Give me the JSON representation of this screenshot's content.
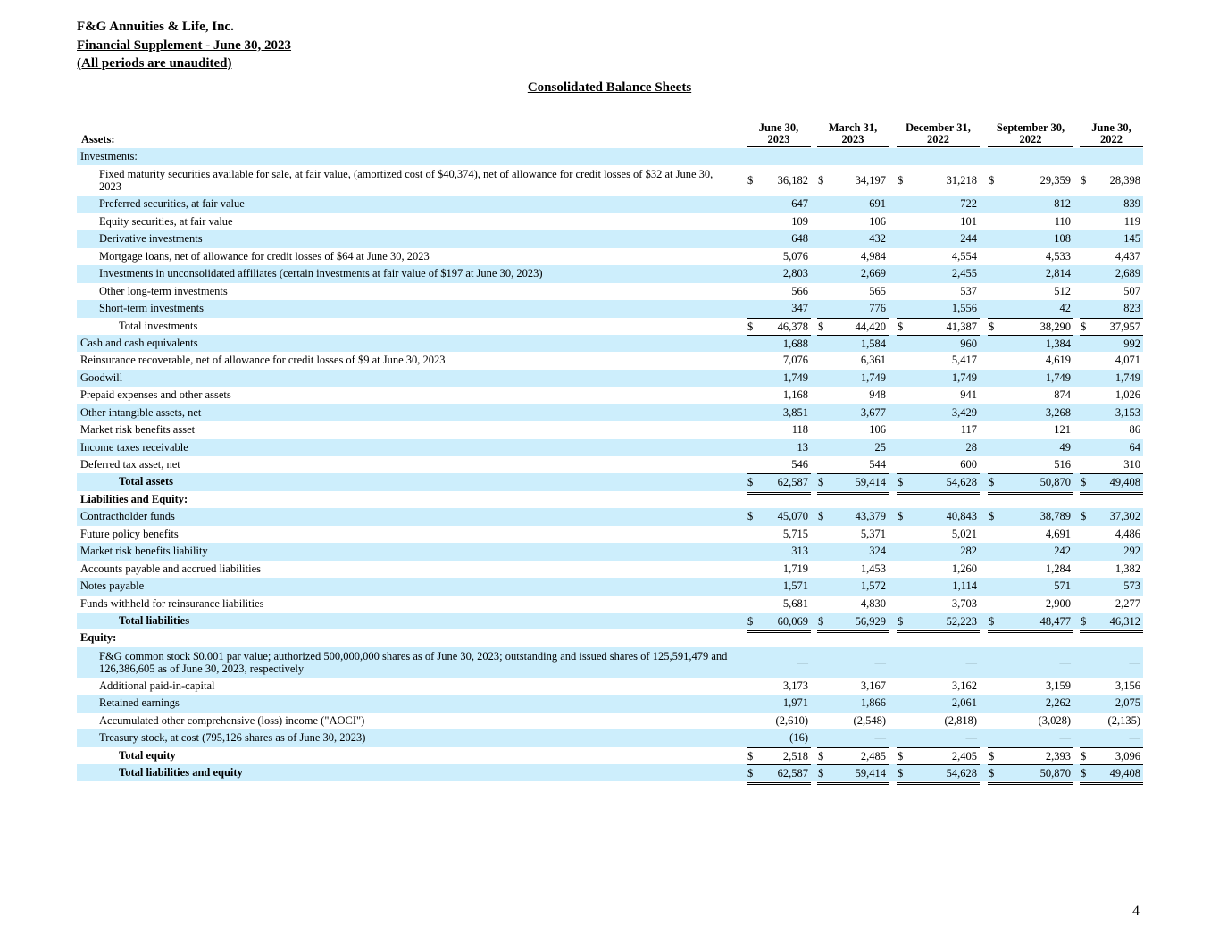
{
  "header": {
    "company": "F&G Annuities & Life, Inc.",
    "supplement": "Financial Supplement - June 30, 2023",
    "note": "(All periods are unaudited)"
  },
  "title": "Consolidated Balance Sheets",
  "columns": [
    {
      "line1": "June 30,",
      "line2": "2023"
    },
    {
      "line1": "March 31,",
      "line2": "2023"
    },
    {
      "line1": "December 31,",
      "line2": "2022"
    },
    {
      "line1": "September 30,",
      "line2": "2022"
    },
    {
      "line1": "June 30,",
      "line2": "2022"
    }
  ],
  "assets_label": "Assets:",
  "rows": [
    {
      "label": "Investments:",
      "indent": 0,
      "shade": true,
      "bold": false,
      "values": [
        "",
        "",
        "",
        "",
        ""
      ]
    },
    {
      "label": "Fixed maturity securities available for sale, at fair value, (amortized cost of $40,374), net of allowance for credit losses of $32 at June 30, 2023",
      "indent": 1,
      "shade": false,
      "bold": false,
      "tall": true,
      "dollar": true,
      "values": [
        "36,182",
        "34,197",
        "31,218",
        "29,359",
        "28,398"
      ]
    },
    {
      "label": "Preferred securities, at fair value",
      "indent": 1,
      "shade": true,
      "values": [
        "647",
        "691",
        "722",
        "812",
        "839"
      ]
    },
    {
      "label": "Equity securities, at fair value",
      "indent": 1,
      "shade": false,
      "values": [
        "109",
        "106",
        "101",
        "110",
        "119"
      ]
    },
    {
      "label": "Derivative investments",
      "indent": 1,
      "shade": true,
      "values": [
        "648",
        "432",
        "244",
        "108",
        "145"
      ]
    },
    {
      "label": "Mortgage loans, net of allowance for credit losses of $64 at June 30, 2023",
      "indent": 1,
      "shade": false,
      "values": [
        "5,076",
        "4,984",
        "4,554",
        "4,533",
        "4,437"
      ]
    },
    {
      "label": "Investments in unconsolidated affiliates (certain investments at fair value of $197 at June 30, 2023)",
      "indent": 1,
      "shade": true,
      "values": [
        "2,803",
        "2,669",
        "2,455",
        "2,814",
        "2,689"
      ]
    },
    {
      "label": "Other long-term investments",
      "indent": 1,
      "shade": false,
      "values": [
        "566",
        "565",
        "537",
        "512",
        "507"
      ]
    },
    {
      "label": "Short-term investments",
      "indent": 1,
      "shade": true,
      "values": [
        "347",
        "776",
        "1,556",
        "42",
        "823"
      ],
      "underline": true
    },
    {
      "label": "Total investments",
      "indent": 2,
      "shade": false,
      "dollar": true,
      "values": [
        "46,378",
        "44,420",
        "41,387",
        "38,290",
        "37,957"
      ],
      "underline": true
    },
    {
      "label": "Cash and cash equivalents",
      "indent": 0,
      "shade": true,
      "values": [
        "1,688",
        "1,584",
        "960",
        "1,384",
        "992"
      ]
    },
    {
      "label": "Reinsurance recoverable, net of allowance for credit losses of $9 at June 30, 2023",
      "indent": 0,
      "shade": false,
      "values": [
        "7,076",
        "6,361",
        "5,417",
        "4,619",
        "4,071"
      ]
    },
    {
      "label": "Goodwill",
      "indent": 0,
      "shade": true,
      "values": [
        "1,749",
        "1,749",
        "1,749",
        "1,749",
        "1,749"
      ]
    },
    {
      "label": "Prepaid expenses and other assets",
      "indent": 0,
      "shade": false,
      "values": [
        "1,168",
        "948",
        "941",
        "874",
        "1,026"
      ]
    },
    {
      "label": "Other intangible assets, net",
      "indent": 0,
      "shade": true,
      "values": [
        "3,851",
        "3,677",
        "3,429",
        "3,268",
        "3,153"
      ]
    },
    {
      "label": "Market risk benefits asset",
      "indent": 0,
      "shade": false,
      "values": [
        "118",
        "106",
        "117",
        "121",
        "86"
      ]
    },
    {
      "label": "Income taxes receivable",
      "indent": 0,
      "shade": true,
      "values": [
        "13",
        "25",
        "28",
        "49",
        "64"
      ]
    },
    {
      "label": "Deferred tax asset, net",
      "indent": 0,
      "shade": false,
      "values": [
        "546",
        "544",
        "600",
        "516",
        "310"
      ],
      "underline": true
    },
    {
      "label": "Total assets",
      "indent": 2,
      "shade": true,
      "bold": true,
      "dollar": true,
      "double": true,
      "values": [
        "62,587",
        "59,414",
        "54,628",
        "50,870",
        "49,408"
      ]
    },
    {
      "label": "Liabilities and Equity:",
      "indent": 0,
      "shade": false,
      "bold": true,
      "values": [
        "",
        "",
        "",
        "",
        ""
      ]
    },
    {
      "label": "Contractholder funds",
      "indent": 0,
      "shade": true,
      "dollar": true,
      "values": [
        "45,070",
        "43,379",
        "40,843",
        "38,789",
        "37,302"
      ]
    },
    {
      "label": "Future policy benefits",
      "indent": 0,
      "shade": false,
      "values": [
        "5,715",
        "5,371",
        "5,021",
        "4,691",
        "4,486"
      ]
    },
    {
      "label": "Market risk benefits liability",
      "indent": 0,
      "shade": true,
      "values": [
        "313",
        "324",
        "282",
        "242",
        "292"
      ]
    },
    {
      "label": "Accounts payable and accrued liabilities",
      "indent": 0,
      "shade": false,
      "values": [
        "1,719",
        "1,453",
        "1,260",
        "1,284",
        "1,382"
      ]
    },
    {
      "label": "Notes payable",
      "indent": 0,
      "shade": true,
      "values": [
        "1,571",
        "1,572",
        "1,114",
        "571",
        "573"
      ]
    },
    {
      "label": "Funds withheld for reinsurance liabilities",
      "indent": 0,
      "shade": false,
      "values": [
        "5,681",
        "4,830",
        "3,703",
        "2,900",
        "2,277"
      ],
      "underline": true
    },
    {
      "label": "Total liabilities",
      "indent": 2,
      "shade": true,
      "bold": true,
      "dollar": true,
      "double": true,
      "values": [
        "60,069",
        "56,929",
        "52,223",
        "48,477",
        "46,312"
      ]
    },
    {
      "label": "Equity:",
      "indent": 0,
      "shade": false,
      "bold": true,
      "values": [
        "",
        "",
        "",
        "",
        ""
      ]
    },
    {
      "label": "F&G common stock $0.001 par value; authorized 500,000,000 shares as of June 30, 2023;  outstanding and issued shares of 125,591,479 and 126,386,605 as of  June 30, 2023, respectively",
      "indent": 1,
      "shade": true,
      "tall": true,
      "values": [
        "—",
        "—",
        "—",
        "—",
        "—"
      ]
    },
    {
      "label": "Additional paid-in-capital",
      "indent": 1,
      "shade": false,
      "values": [
        "3,173",
        "3,167",
        "3,162",
        "3,159",
        "3,156"
      ]
    },
    {
      "label": "Retained earnings",
      "indent": 1,
      "shade": true,
      "values": [
        "1,971",
        "1,866",
        "2,061",
        "2,262",
        "2,075"
      ]
    },
    {
      "label": "Accumulated other comprehensive (loss) income (\"AOCI\")",
      "indent": 1,
      "shade": false,
      "values": [
        "(2,610)",
        "(2,548)",
        "(2,818)",
        "(3,028)",
        "(2,135)"
      ]
    },
    {
      "label": "Treasury stock, at cost (795,126 shares as of June 30, 2023)",
      "indent": 1,
      "shade": true,
      "values": [
        "(16)",
        "—",
        "—",
        "—",
        "—"
      ],
      "underline": true
    },
    {
      "label": "Total equity",
      "indent": 2,
      "shade": false,
      "bold": true,
      "dollar": true,
      "values": [
        "2,518",
        "2,485",
        "2,405",
        "2,393",
        "3,096"
      ],
      "underline": true
    },
    {
      "label": "Total liabilities and equity",
      "indent": 2,
      "shade": true,
      "bold": true,
      "dollar": true,
      "double": true,
      "values": [
        "62,587",
        "59,414",
        "54,628",
        "50,870",
        "49,408"
      ]
    }
  ],
  "currency_symbol": "$",
  "page_number": "4"
}
